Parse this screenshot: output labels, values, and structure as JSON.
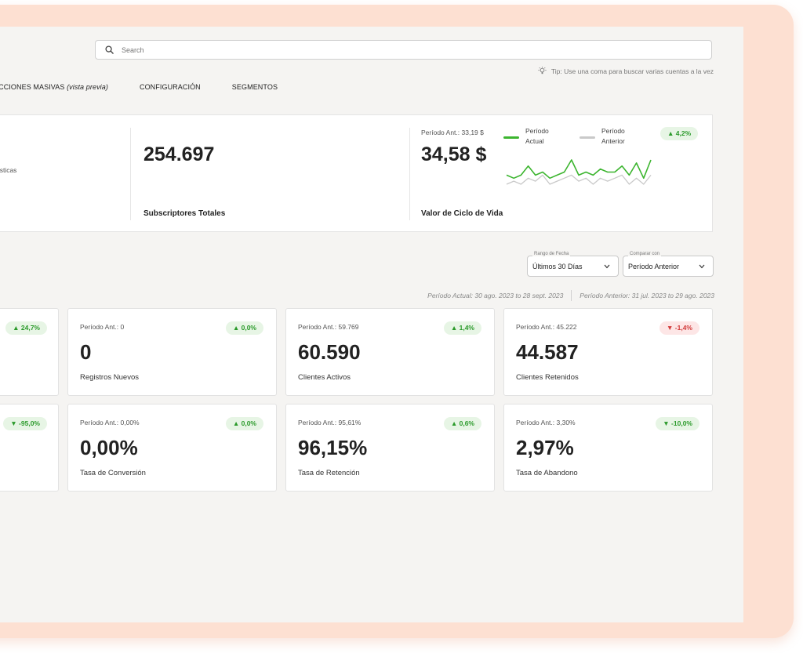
{
  "search": {
    "placeholder": "Search"
  },
  "tip": "Tip: Use una coma para buscar varias cuentas a la vez",
  "nav": {
    "bulk_actions": "ACCIONES MASIVAS",
    "bulk_actions_preview": "(vista previa)",
    "configuration": "CONFIGURACIÓN",
    "segments": "SEGMENTOS"
  },
  "summary": {
    "partial_text": "ular estadísticas",
    "subscribers": {
      "value": "254.697",
      "label": "Subscriptores Totales"
    },
    "ltv": {
      "previous": "Período Ant.: 33,19 $",
      "value": "34,58 $",
      "label": "Valor de Ciclo de Vida",
      "badge": "▲ 4,2%",
      "legend_current": [
        "Período",
        "Actual"
      ],
      "legend_previous": [
        "Período",
        "Anterior"
      ],
      "colors": {
        "current": "#3cb52f",
        "previous": "#c9c9c9"
      }
    }
  },
  "chart_data": {
    "type": "line",
    "series": [
      {
        "name": "Período Actual",
        "values": [
          5,
          4,
          5,
          8,
          5,
          6,
          4,
          5,
          6,
          10,
          5,
          6,
          5,
          7,
          6,
          6,
          8,
          5,
          9,
          4,
          10
        ]
      },
      {
        "name": "Período Anterior",
        "values": [
          2,
          3,
          2,
          4,
          3,
          5,
          2,
          3,
          4,
          5,
          3,
          4,
          2,
          4,
          3,
          4,
          5,
          2,
          4,
          2,
          5
        ]
      }
    ]
  },
  "filters": {
    "date_range": {
      "label": "Rango de Fecha",
      "value": "Últimos 30 Días"
    },
    "compare": {
      "label": "Comparar con",
      "value": "Período Anterior"
    }
  },
  "periods": {
    "current": "Período Actual: 30 ago. 2023 to 28 sept. 2023",
    "previous": "Período Anterior: 31 jul. 2023 to 29 ago. 2023"
  },
  "cards_row1": [
    {
      "badge": "▲ 24,7%",
      "dir": "up"
    },
    {
      "prev": "Período Ant.: 0",
      "value": "0",
      "label": "Registros Nuevos",
      "badge": "▲ 0,0%",
      "dir": "up"
    },
    {
      "prev": "Período Ant.: 59.769",
      "value": "60.590",
      "label": "Clientes Activos",
      "badge": "▲ 1,4%",
      "dir": "up"
    },
    {
      "prev": "Período Ant.: 45.222",
      "value": "44.587",
      "label": "Clientes Retenidos",
      "badge": "▼ -1,4%",
      "dir": "down"
    }
  ],
  "cards_row2": [
    {
      "badge": "▼ -95,0%",
      "dir": "up"
    },
    {
      "prev": "Período Ant.: 0,00%",
      "value": "0,00%",
      "label": "Tasa de Conversión",
      "badge": "▲ 0,0%",
      "dir": "up"
    },
    {
      "prev": "Período Ant.: 95,61%",
      "value": "96,15%",
      "label": "Tasa de Retención",
      "badge": "▲ 0,6%",
      "dir": "up"
    },
    {
      "prev": "Período Ant.: 3,30%",
      "value": "2,97%",
      "label": "Tasa de Abandono",
      "badge": "▼ -10,0%",
      "dir": "up"
    }
  ]
}
